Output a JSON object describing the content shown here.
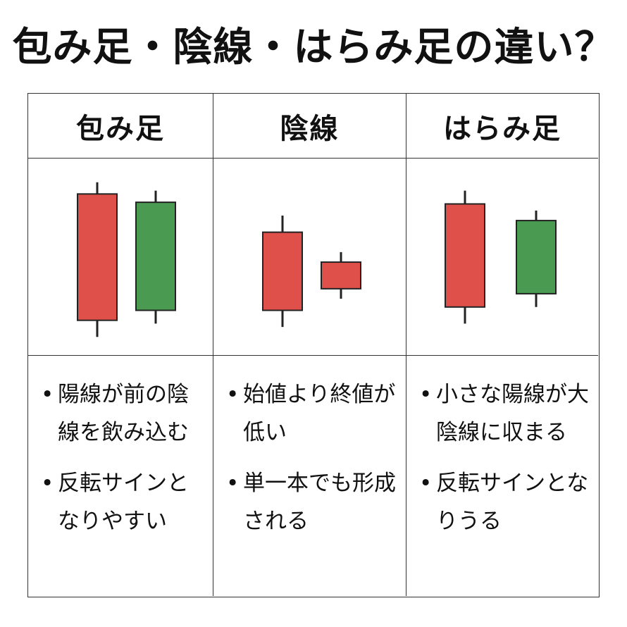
{
  "title": "包み足・陰線・はらみ足の違い？",
  "colors": {
    "bullish_red": "#e0504a",
    "bearish_green": "#4a9a52",
    "border": "#333333"
  },
  "columns": [
    {
      "header": "包み足",
      "bullets": [
        "陽線が前の陰線を飲み込む",
        "反転サインとなりやすい"
      ],
      "candles": [
        {
          "color": "red",
          "wick_top": 0.95,
          "body_top": 0.88,
          "body_bottom": 0.12,
          "wick_bottom": 0.02
        },
        {
          "color": "green",
          "wick_top": 0.9,
          "body_top": 0.83,
          "body_bottom": 0.18,
          "wick_bottom": 0.1
        }
      ]
    },
    {
      "header": "陰線",
      "bullets": [
        "始値より終値が低い",
        "単一本でも形成される"
      ],
      "candles": [
        {
          "color": "red",
          "wick_top": 0.75,
          "body_top": 0.65,
          "body_bottom": 0.18,
          "wick_bottom": 0.08
        },
        {
          "color": "red",
          "wick_top": 0.53,
          "body_top": 0.47,
          "body_bottom": 0.31,
          "wick_bottom": 0.25
        }
      ]
    },
    {
      "header": "はらみ足",
      "bullets": [
        "小さな陽線が大陰線に収まる",
        "反転サインとなりうる"
      ],
      "candles": [
        {
          "color": "red",
          "wick_top": 0.9,
          "body_top": 0.82,
          "body_bottom": 0.2,
          "wick_bottom": 0.1
        },
        {
          "color": "green",
          "wick_top": 0.78,
          "body_top": 0.72,
          "body_bottom": 0.28,
          "wick_bottom": 0.2
        }
      ]
    }
  ]
}
